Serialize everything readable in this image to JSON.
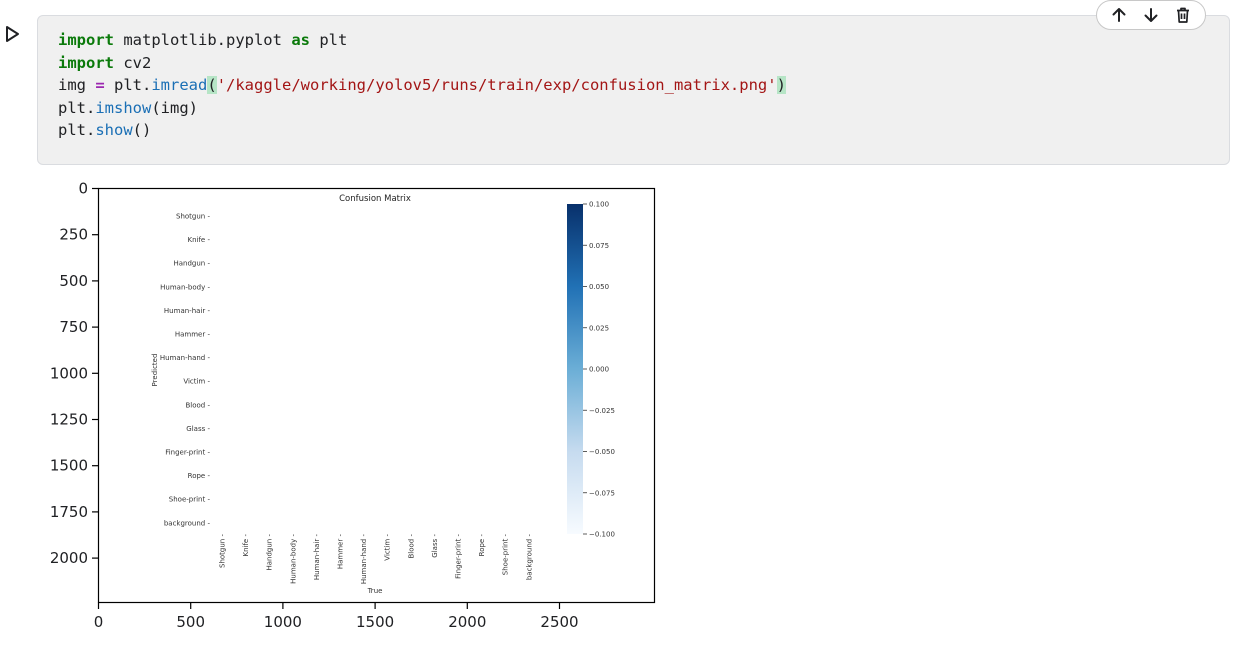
{
  "cell": {
    "run_icon": "play-icon",
    "toolbar": {
      "move_up_icon": "arrow-up-icon",
      "move_down_icon": "arrow-down-icon",
      "delete_icon": "trash-icon"
    },
    "code": {
      "line1": {
        "kw1": "import",
        "t1": " matplotlib.pyplot ",
        "kw2": "as",
        "t2": " plt"
      },
      "line2": {
        "kw1": "import",
        "t1": " cv2"
      },
      "line3": {
        "t1": "img ",
        "op": "=",
        "t2": " plt.",
        "fn": "imread",
        "lp": "(",
        "str": "'/kaggle/working/yolov5/runs/train/exp/confusion_matrix.png'",
        "rp": ")"
      },
      "line4": {
        "t1": "plt.",
        "fn": "imshow",
        "t2": "(img)"
      },
      "line5": {
        "t1": "plt.",
        "fn": "show",
        "t2": "()"
      }
    }
  },
  "output": {
    "axes": {
      "y_ticks": [
        "0",
        "250",
        "500",
        "750",
        "1000",
        "1250",
        "1500",
        "1750",
        "2000"
      ],
      "x_ticks": [
        "0",
        "500",
        "1000",
        "1500",
        "2000",
        "2500"
      ]
    },
    "image": {
      "title": "Confusion Matrix",
      "ylabel": "Predicted",
      "xlabel": "True",
      "classes": [
        "Shotgun",
        "Knife",
        "Handgun",
        "Human-body",
        "Human-hair",
        "Hammer",
        "Human-hand",
        "Victim",
        "Blood",
        "Glass",
        "Finger-print",
        "Rope",
        "Shoe-print",
        "background"
      ],
      "colorbar_ticks": [
        "0.100",
        "0.075",
        "0.050",
        "0.025",
        "0.000",
        "−0.025",
        "−0.050",
        "−0.075",
        "−0.100"
      ],
      "colors": {
        "cmap_top": "#08306b",
        "cmap_mid": "#4292c6",
        "cmap_bottom": "#f7fbff"
      }
    }
  }
}
